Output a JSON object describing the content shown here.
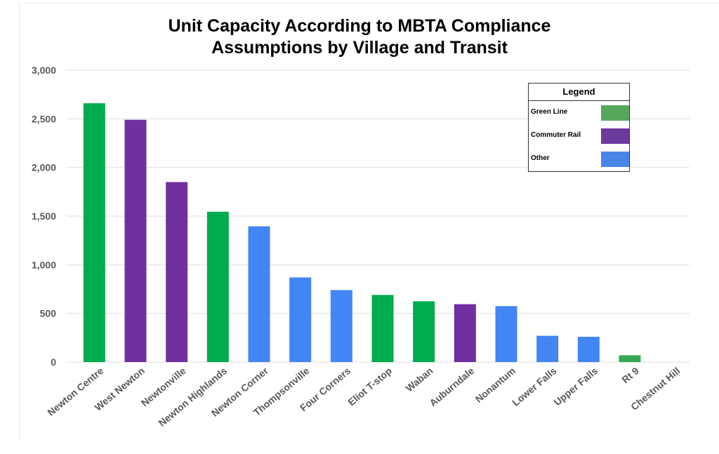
{
  "chart_data": {
    "type": "bar",
    "title": "Unit Capacity According to MBTA Compliance Assumptions by Village and Transit",
    "title_lines": [
      "Unit Capacity According to MBTA Compliance",
      "Assumptions by Village and Transit"
    ],
    "xlabel": "",
    "ylabel": "",
    "ylim": [
      0,
      3000
    ],
    "yticks": [
      0,
      500,
      1000,
      1500,
      2000,
      2500,
      3000
    ],
    "ytick_labels": [
      "0",
      "500",
      "1,000",
      "1,500",
      "2,000",
      "2,500",
      "3,000"
    ],
    "grid": true,
    "categories": [
      "Newton Centre",
      "West Newton",
      "Newtonville",
      "Newton Highlands",
      "Newton Corner",
      "Thompsonville",
      "Four Corners",
      "Eliot T-stop",
      "Waban",
      "Auburndale",
      "Nonantum",
      "Lower Falls",
      "Upper Falls",
      "Rt 9",
      "Chestnut Hill"
    ],
    "values": [
      2660,
      2490,
      1850,
      1545,
      1395,
      870,
      740,
      690,
      625,
      595,
      575,
      270,
      260,
      70,
      0
    ],
    "groups": [
      "Green Line",
      "Commuter Rail",
      "Commuter Rail",
      "Green Line",
      "Other",
      "Other",
      "Other",
      "Green Line",
      "Green Line",
      "Commuter Rail",
      "Other",
      "Other",
      "Other",
      "Green Line",
      "Other"
    ],
    "bar_colors": [
      "#00ac4f",
      "#7030a0",
      "#7030a0",
      "#00ac4f",
      "#4285f4",
      "#4285f4",
      "#4285f4",
      "#00ac4f",
      "#00ac4f",
      "#7030a0",
      "#4285f4",
      "#4285f4",
      "#4285f4",
      "#34a853",
      "#4285f4"
    ],
    "legend": {
      "title": "Legend",
      "placement": "top-right",
      "entries": [
        {
          "label": "Green Line",
          "color": "#57a85c"
        },
        {
          "label": "Commuter Rail",
          "color": "#6a3a9c"
        },
        {
          "label": "Other",
          "color": "#4a86e8"
        }
      ]
    }
  }
}
